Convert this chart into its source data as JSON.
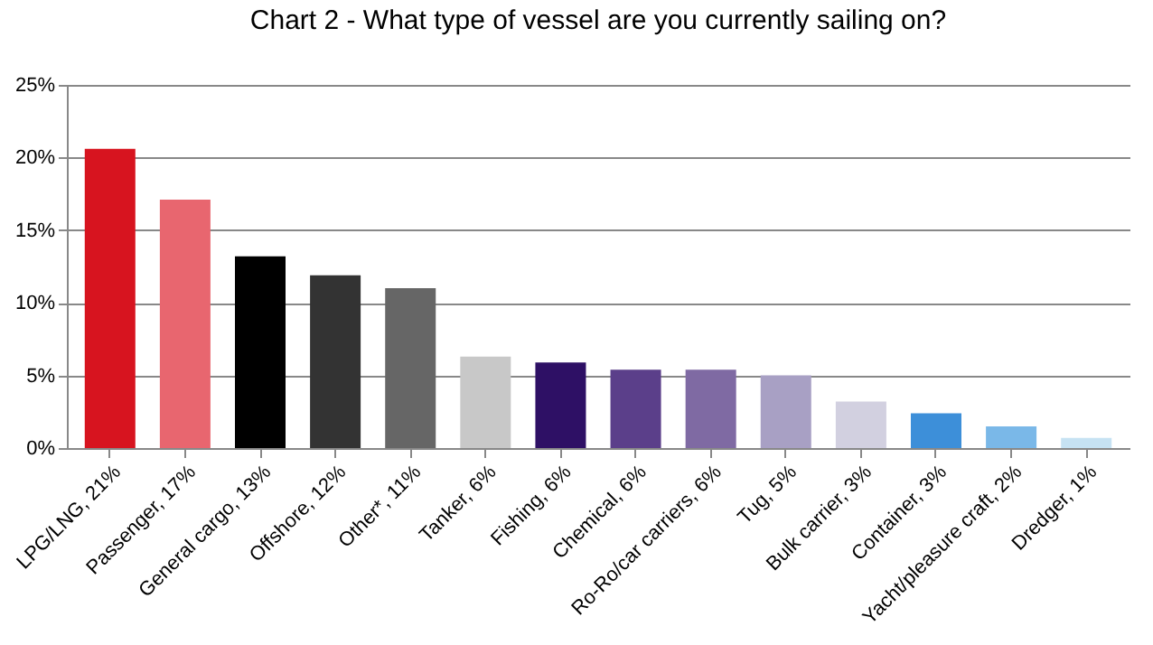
{
  "chart_data": {
    "type": "bar",
    "title": "Chart 2 - What type of vessel are you currently sailing on?",
    "categories": [
      "LPG/LNG, 21%",
      "Passenger, 17%",
      "General cargo, 13%",
      "Offshore, 12%",
      "Other*, 11%",
      "Tanker, 6%",
      "Fishing, 6%",
      "Chemical, 6%",
      "Ro-Ro/car carriers, 6%",
      "Tug, 5%",
      "Bulk carrier, 3%",
      "Container, 3%",
      "Yacht/pleasure craft, 2%",
      "Dredger, 1%"
    ],
    "values": [
      20.6,
      17.1,
      13.2,
      11.9,
      11.0,
      6.3,
      5.9,
      5.4,
      5.4,
      5.0,
      3.2,
      2.4,
      1.5,
      0.7
    ],
    "colors": [
      "#d7141f",
      "#e8666f",
      "#000000",
      "#333333",
      "#666666",
      "#c8c8c8",
      "#2e1065",
      "#5b3f8a",
      "#7f6aa3",
      "#a8a0c4",
      "#d2d0e0",
      "#3d8fd9",
      "#7ab8e8",
      "#c6e2f3"
    ],
    "ylim": [
      0,
      25
    ],
    "yticks": [
      {
        "value": 0,
        "label": "0%"
      },
      {
        "value": 5,
        "label": "5%"
      },
      {
        "value": 10,
        "label": "10%"
      },
      {
        "value": 15,
        "label": "15%"
      },
      {
        "value": 20,
        "label": "20%"
      },
      {
        "value": 25,
        "label": "25%"
      }
    ],
    "grid": "y"
  }
}
